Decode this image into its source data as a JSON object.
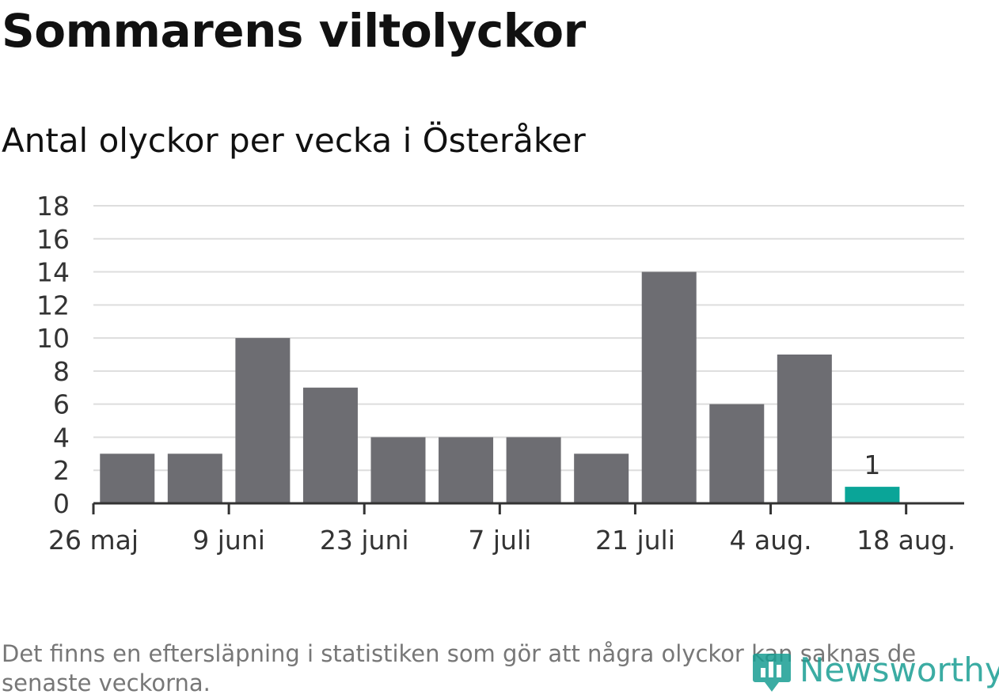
{
  "title": "Sommarens viltolyckor",
  "subtitle": "Antal olyckor per vecka i Österåker",
  "footnote": "Det finns en eftersläpning i statistiken som gör att några olyckor kan saknas de senaste veckorna.",
  "logo_text": "Newsworthy",
  "colors": {
    "bar": "#6d6d72",
    "highlight": "#0aa598",
    "grid": "#dddddd",
    "axis": "#333333",
    "logo": "#1a9e93"
  },
  "chart_data": {
    "type": "bar",
    "x": [
      "2019-06-02",
      "2019-06-09",
      "2019-06-16",
      "2019-06-23",
      "2019-06-30",
      "2019-07-07",
      "2019-07-14",
      "2019-07-21",
      "2019-07-28",
      "2019-08-04",
      "2019-08-11",
      "2019-08-18"
    ],
    "values": [
      3,
      3,
      10,
      7,
      4,
      4,
      4,
      3,
      14,
      6,
      9,
      1
    ],
    "highlight_index": 11,
    "data_labels": [
      {
        "index": 11,
        "text": "1"
      }
    ],
    "ylim": [
      0,
      18
    ],
    "yticks": [
      0,
      2,
      4,
      6,
      8,
      10,
      12,
      14,
      16,
      18
    ],
    "xticks": [
      {
        "date": "2019-05-26",
        "label": "26 maj"
      },
      {
        "date": "2019-06-09",
        "label": "9 juni"
      },
      {
        "date": "2019-06-23",
        "label": "23 juni"
      },
      {
        "date": "2019-07-07",
        "label": "7 juli"
      },
      {
        "date": "2019-07-21",
        "label": "21 juli"
      },
      {
        "date": "2019-08-04",
        "label": "4 aug."
      },
      {
        "date": "2019-08-18",
        "label": "18 aug."
      }
    ],
    "xlim": [
      "2019-05-26",
      "2019-08-24"
    ],
    "grid": true
  }
}
